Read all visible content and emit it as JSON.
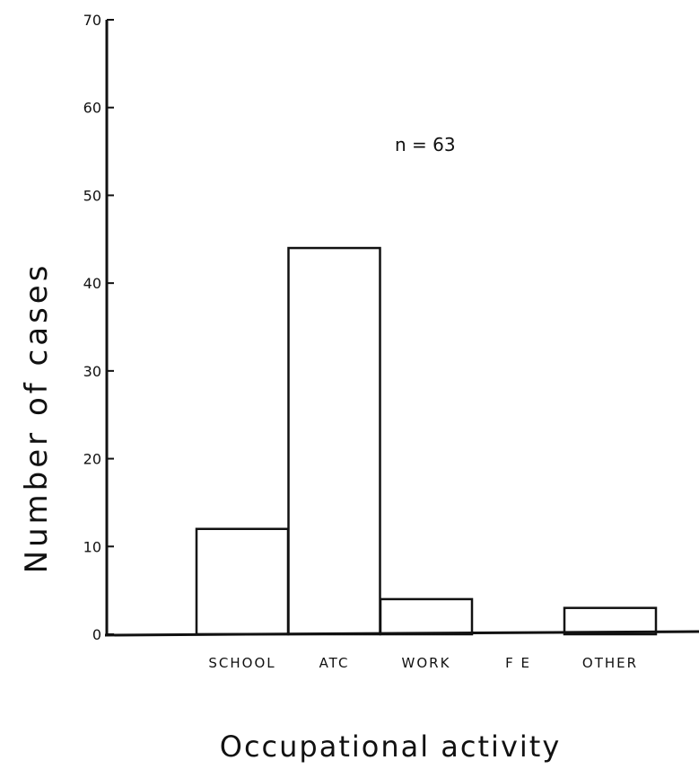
{
  "chart_data": {
    "type": "bar",
    "categories": [
      "SCHOOL",
      "ATC",
      "WORK",
      "F E",
      "OTHER"
    ],
    "values": [
      12,
      44,
      4,
      0,
      3
    ],
    "xlabel": "Occupational activity",
    "ylabel": "Number of cases",
    "annotation": "n = 63",
    "ylim": [
      0,
      70
    ],
    "yticks": [
      "0",
      "10",
      "20",
      "30",
      "40",
      "50",
      "60",
      "70"
    ],
    "grid": false
  }
}
